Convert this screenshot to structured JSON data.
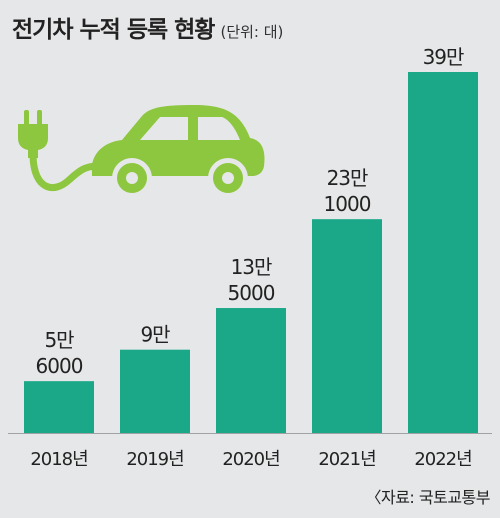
{
  "title": "전기차 누적 등록 현황",
  "unit": "(단위: 대)",
  "source": "〈자료: 국토교통부",
  "colors": {
    "bar": "#1aa889",
    "background": "#e6e7e8",
    "icon": "#8dc63f"
  },
  "icon": "electric-car-plug-icon",
  "chart_data": {
    "type": "bar",
    "categories": [
      "2018년",
      "2019년",
      "2020년",
      "2021년",
      "2022년"
    ],
    "values": [
      56000,
      90000,
      135000,
      231000,
      390000
    ],
    "data_labels": [
      [
        "5만",
        "6000"
      ],
      [
        "9만"
      ],
      [
        "13만",
        "5000"
      ],
      [
        "23만",
        "1000"
      ],
      [
        "39만"
      ]
    ],
    "ylim": [
      0,
      390000
    ],
    "legend": "none",
    "grid": false
  }
}
